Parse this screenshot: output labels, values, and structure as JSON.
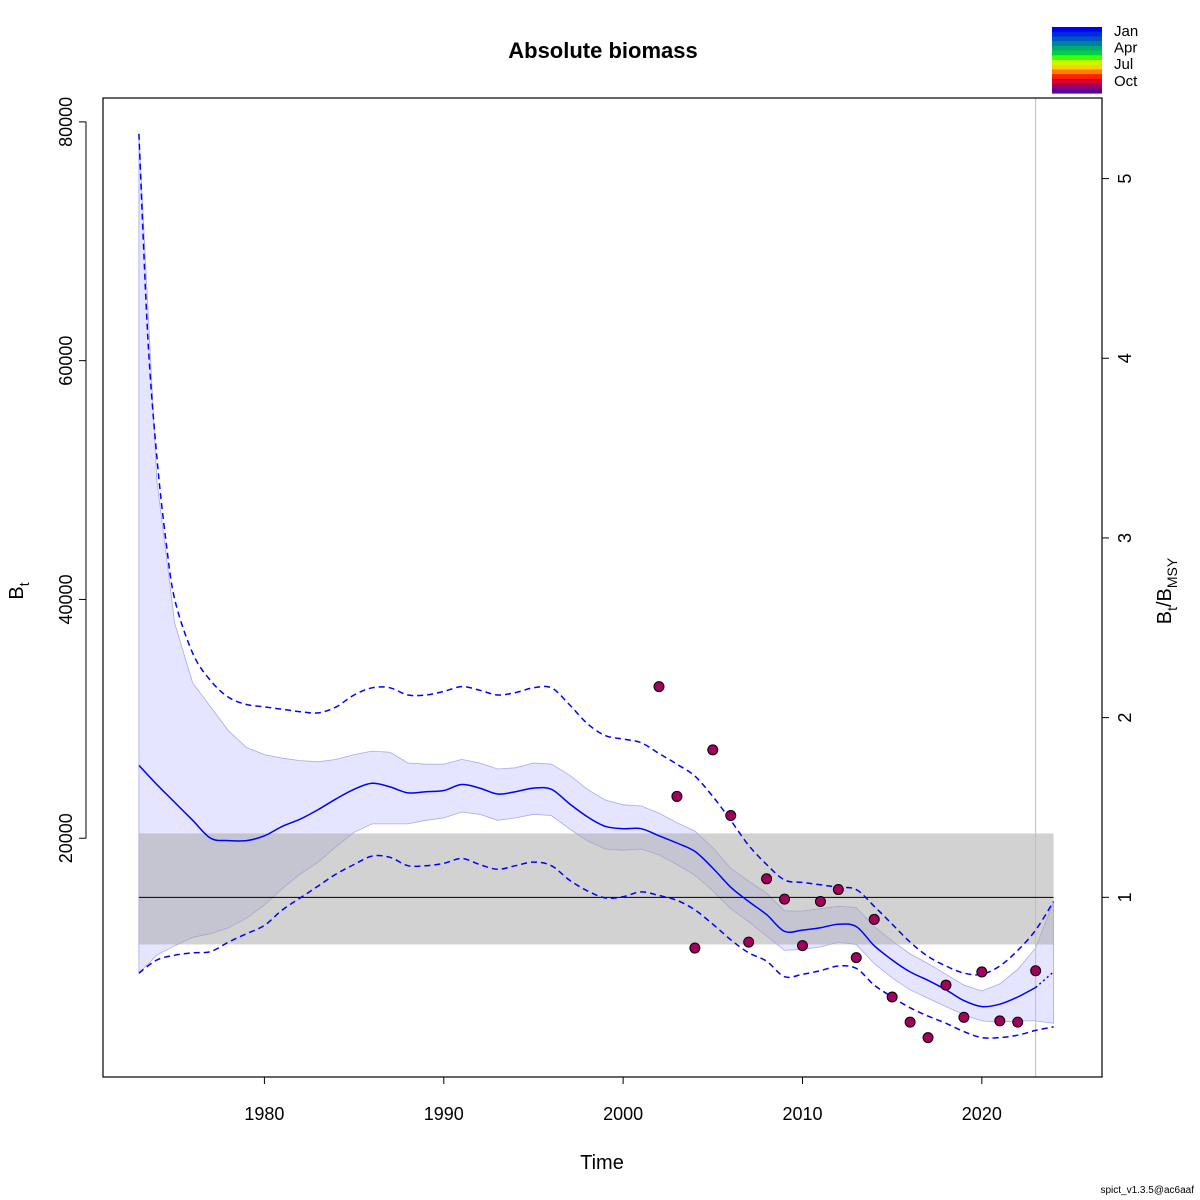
{
  "chart_data": {
    "type": "line",
    "title": "Absolute biomass",
    "xlabel": "Time",
    "ylabel_main": "B",
    "ylabel_sub": "t",
    "y2label_main": "B",
    "y2label_sub1": "t",
    "y2label_mid": "/B",
    "y2label_sub2": "MSY",
    "xlim": [
      1971,
      2026.7
    ],
    "ylim": [
      0,
      82000
    ],
    "x_ticks": [
      1980,
      1990,
      2000,
      2010,
      2020
    ],
    "y_ticks": [
      20000,
      40000,
      60000,
      80000
    ],
    "y2_ticks": [
      1,
      2,
      3,
      4,
      5
    ],
    "bmsy": 15050,
    "bmsy_band": [
      11100,
      20400
    ],
    "band_x": [
      1973,
      2024
    ],
    "forecast_start": 2023,
    "estimate": {
      "x": [
        1973,
        1974,
        1975,
        1976,
        1977,
        1978,
        1979,
        1980,
        1981,
        1982,
        1983,
        1984,
        1985,
        1986,
        1987,
        1988,
        1989,
        1990,
        1991,
        1992,
        1993,
        1994,
        1995,
        1996,
        1997,
        1998,
        1999,
        2000,
        2001,
        2002,
        2003,
        2004,
        2005,
        2006,
        2007,
        2008,
        2009,
        2010,
        2011,
        2012,
        2013,
        2014,
        2015,
        2016,
        2017,
        2018,
        2019,
        2020,
        2021,
        2022,
        2023
      ],
      "y": [
        26100,
        24500,
        23000,
        21500,
        20000,
        19800,
        19800,
        20200,
        21000,
        21600,
        22400,
        23300,
        24100,
        24600,
        24300,
        23800,
        23900,
        24000,
        24500,
        24200,
        23700,
        23900,
        24200,
        24100,
        22900,
        21800,
        21000,
        20800,
        20800,
        20200,
        19600,
        18900,
        17500,
        15900,
        14700,
        13600,
        12200,
        12300,
        12500,
        12800,
        12600,
        11000,
        9800,
        8800,
        8100,
        7300,
        6400,
        5900,
        6100,
        6700,
        7500
      ]
    },
    "forecast": {
      "x": [
        2023,
        2024
      ],
      "y": [
        7500,
        8800
      ]
    },
    "ci_lower": {
      "x": [
        1973,
        1974,
        1975,
        1976,
        1977,
        1978,
        1979,
        1980,
        1981,
        1982,
        1983,
        1984,
        1985,
        1986,
        1987,
        1988,
        1989,
        1990,
        1991,
        1992,
        1993,
        1994,
        1995,
        1996,
        1997,
        1998,
        1999,
        2000,
        2001,
        2002,
        2003,
        2004,
        2005,
        2006,
        2007,
        2008,
        2009,
        2010,
        2011,
        2012,
        2013,
        2014,
        2015,
        2016,
        2017,
        2018,
        2019,
        2020,
        2021,
        2022,
        2023,
        2024
      ],
      "y": [
        8700,
        9800,
        10200,
        10400,
        10500,
        11300,
        12000,
        12700,
        14000,
        15000,
        16000,
        17000,
        17800,
        18500,
        18400,
        17700,
        17700,
        17900,
        18300,
        17800,
        17400,
        17700,
        18000,
        17700,
        16500,
        15600,
        15000,
        15100,
        15500,
        15200,
        14800,
        14000,
        12800,
        11500,
        10400,
        9700,
        8400,
        8600,
        8900,
        9300,
        9100,
        7700,
        6700,
        5800,
        5100,
        4500,
        3800,
        3300,
        3300,
        3500,
        3900,
        4200
      ]
    },
    "ci_upper": {
      "x": [
        1973,
        1973.5,
        1974,
        1974.5,
        1975,
        1976,
        1977,
        1978,
        1979,
        1980,
        1981,
        1982,
        1983,
        1984,
        1985,
        1986,
        1987,
        1988,
        1989,
        1990,
        1991,
        1992,
        1993,
        1994,
        1995,
        1996,
        1997,
        1998,
        1999,
        2000,
        2001,
        2002,
        2003,
        2004,
        2005,
        2006,
        2007,
        2008,
        2009,
        2010,
        2011,
        2012,
        2013,
        2014,
        2015,
        2016,
        2017,
        2018,
        2019,
        2020,
        2021,
        2022,
        2023,
        2024
      ],
      "y": [
        79000,
        62000,
        52000,
        45000,
        40000,
        35500,
        33200,
        31800,
        31200,
        31000,
        30800,
        30600,
        30500,
        31000,
        32000,
        32600,
        32600,
        32000,
        32000,
        32300,
        32700,
        32400,
        32000,
        32200,
        32600,
        32600,
        31200,
        29600,
        28600,
        28300,
        28000,
        27100,
        26200,
        25200,
        23500,
        21500,
        19400,
        17800,
        16500,
        16300,
        16100,
        15900,
        15700,
        14300,
        12800,
        11300,
        10100,
        9300,
        8700,
        8600,
        9300,
        10600,
        12300,
        14700
      ]
    },
    "conf_band": {
      "x": [
        1973,
        1974,
        1975,
        1976,
        1977,
        1978,
        1979,
        1980,
        1981,
        1982,
        1983,
        1984,
        1985,
        1986,
        1987,
        1988,
        1989,
        1990,
        1991,
        1992,
        1993,
        1994,
        1995,
        1996,
        1997,
        1998,
        1999,
        2000,
        2001,
        2002,
        2003,
        2004,
        2005,
        2006,
        2007,
        2008,
        2009,
        2010,
        2011,
        2012,
        2013,
        2014,
        2015,
        2016,
        2017,
        2018,
        2019,
        2020,
        2021,
        2022,
        2023,
        2024
      ],
      "upper": [
        79000,
        50000,
        38000,
        33000,
        31000,
        29000,
        27600,
        27000,
        26700,
        26500,
        26400,
        26600,
        27000,
        27300,
        27200,
        26300,
        26200,
        26200,
        26600,
        26300,
        25800,
        25900,
        26300,
        26200,
        25300,
        24100,
        23200,
        22800,
        22700,
        22100,
        21300,
        20600,
        19200,
        17500,
        16400,
        15400,
        13900,
        13900,
        14100,
        14300,
        14200,
        12600,
        11400,
        10300,
        9500,
        8600,
        7700,
        7200,
        7800,
        9000,
        10800,
        14700
      ],
      "lower": [
        8700,
        10200,
        11000,
        11700,
        12000,
        12500,
        13300,
        14400,
        15800,
        17000,
        18000,
        19300,
        20500,
        21200,
        21200,
        21200,
        21500,
        21700,
        22200,
        22000,
        21500,
        21700,
        22000,
        21900,
        20800,
        19800,
        19100,
        19000,
        19100,
        18600,
        17800,
        16900,
        15600,
        14100,
        13000,
        11800,
        10600,
        10700,
        10900,
        11300,
        11100,
        9500,
        8300,
        7300,
        6600,
        5900,
        5200,
        4700,
        4600,
        4700,
        4700,
        4500
      ]
    },
    "observations": {
      "x": [
        2002,
        2003,
        2004,
        2005,
        2006,
        2007,
        2008,
        2009,
        2010,
        2011,
        2012,
        2013,
        2014,
        2015,
        2016,
        2017,
        2018,
        2019,
        2020,
        2021,
        2022,
        2023
      ],
      "y": [
        32700,
        23500,
        10800,
        27400,
        21900,
        11300,
        16600,
        14900,
        11000,
        14700,
        15700,
        10000,
        13200,
        6700,
        4600,
        3300,
        7700,
        5000,
        8800,
        4700,
        4600,
        8900
      ]
    },
    "colors": {
      "estimate_line": "#0000ff",
      "ci_line": "#0000ff",
      "conf_band_fill": "#e5e5ff",
      "conf_band_stroke": "#a9a9f0",
      "bmsy_band_fill": "#a6a6a6",
      "bmsy_line": "#000000",
      "point_fill": "#a1005d",
      "forecast_line": "#bebebe"
    },
    "legend": {
      "position": "top-right",
      "labels": [
        "Jan",
        "Apr",
        "Jul",
        "Oct"
      ],
      "colors": [
        "#0000ff",
        "#0028e0",
        "#0055c4",
        "#0080a0",
        "#00aa70",
        "#00d040",
        "#40ff00",
        "#c0ff00",
        "#ffd000",
        "#ff8000",
        "#ff2000",
        "#e00030",
        "#a0005a",
        "#6000a0"
      ]
    }
  },
  "footer": "spict_v1.3.5@ac6aaf"
}
